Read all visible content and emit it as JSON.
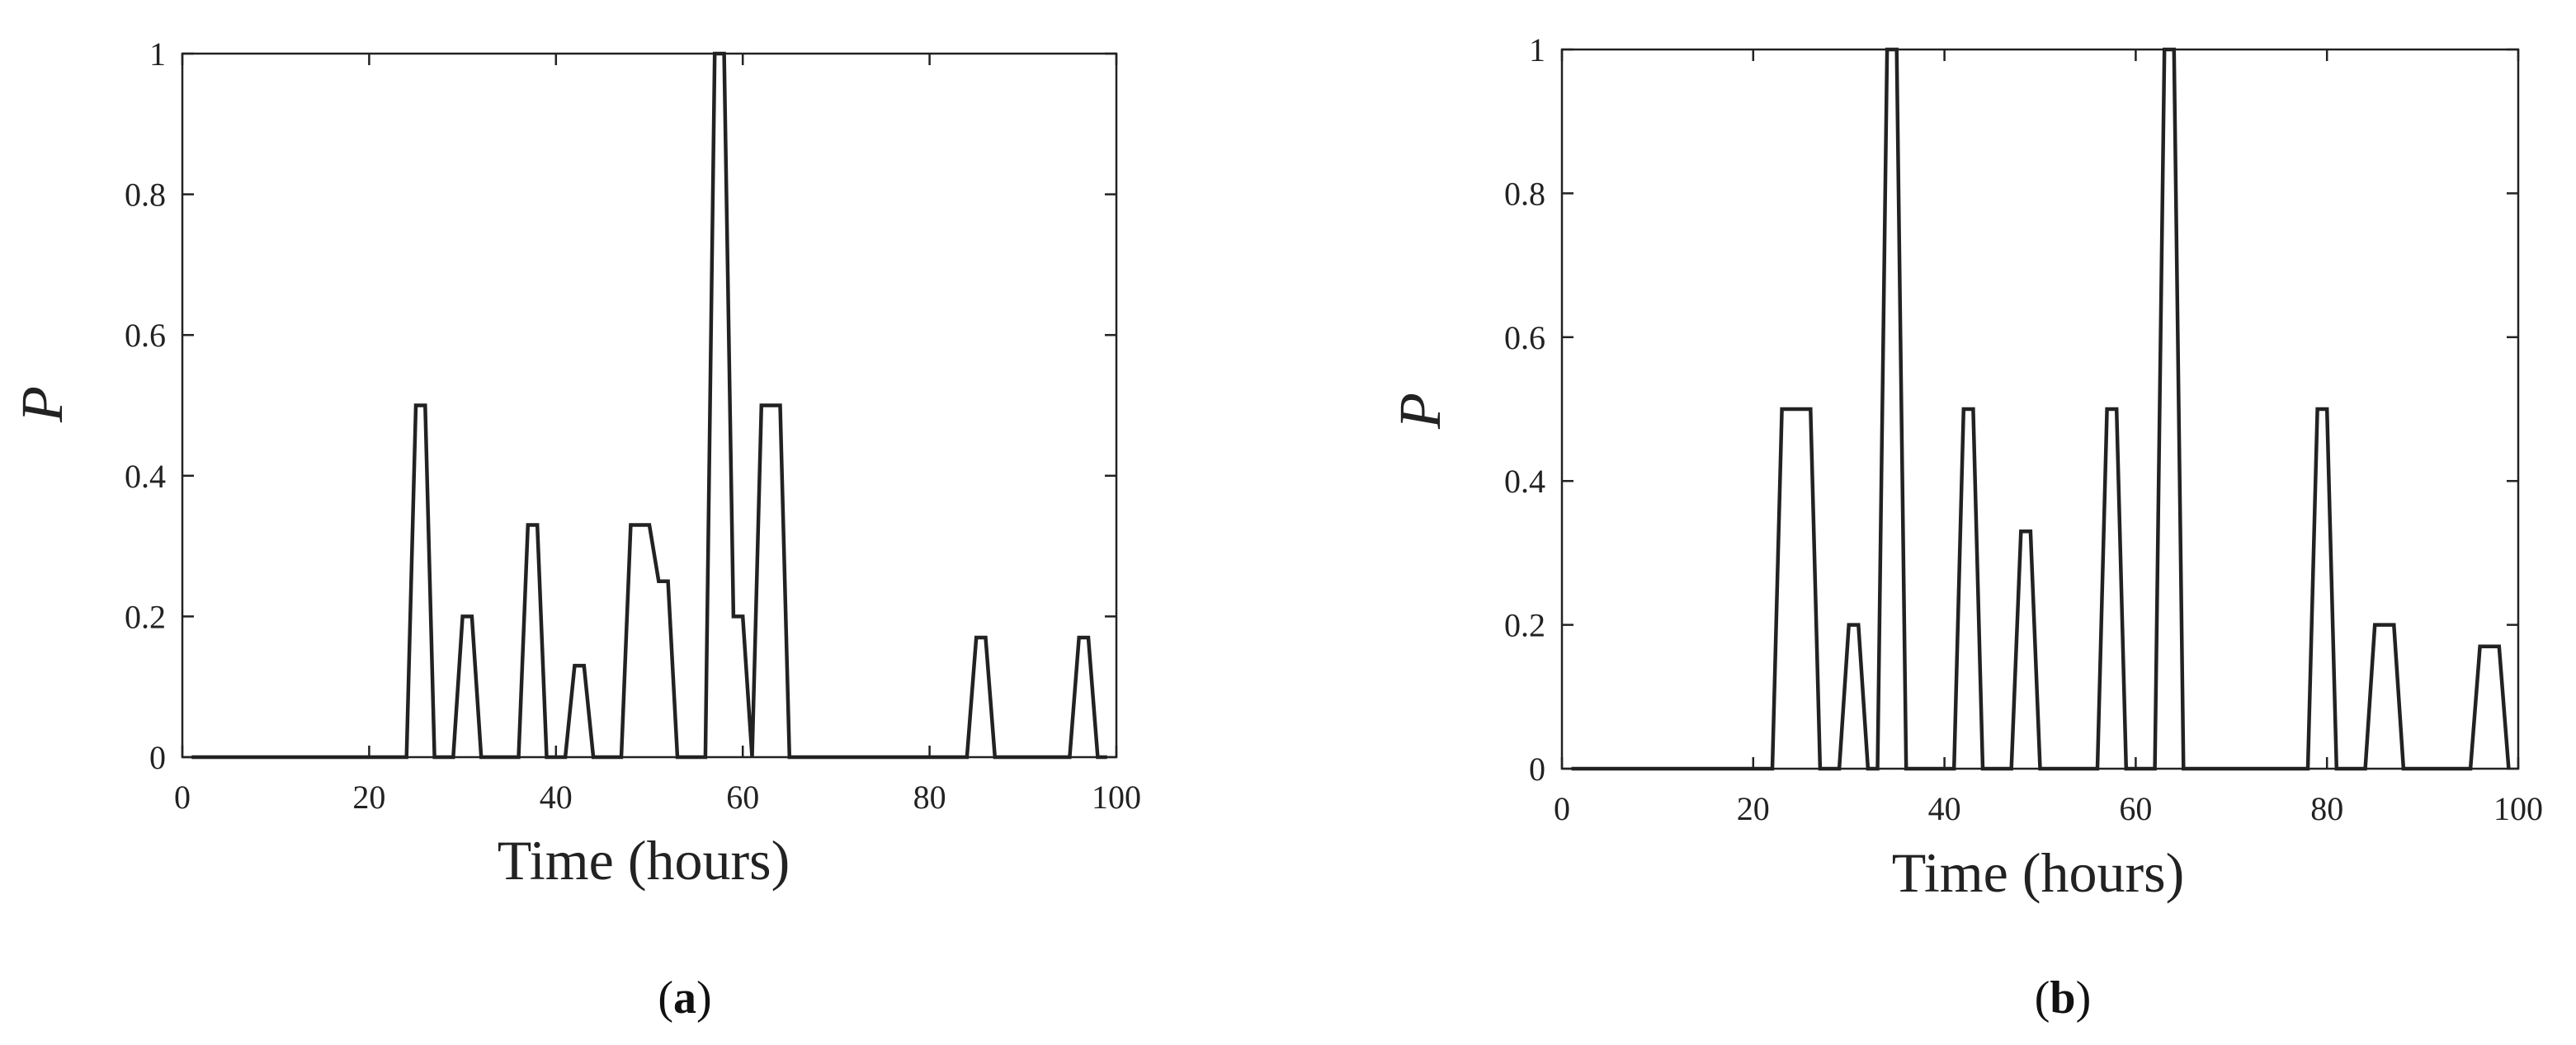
{
  "panels": [
    {
      "label_letter": "a",
      "label_open": "(",
      "label_close": ")"
    },
    {
      "label_letter": "b",
      "label_open": "(",
      "label_close": ")"
    }
  ],
  "chart_data": [
    {
      "type": "line",
      "title": "",
      "xlabel": "Time (hours)",
      "ylabel": "P",
      "xlim": [
        0,
        100
      ],
      "ylim": [
        0,
        1
      ],
      "xticks": [
        0,
        20,
        40,
        60,
        80,
        100
      ],
      "yticks": [
        0,
        0.2,
        0.4,
        0.6,
        0.8,
        1
      ],
      "ytick_labels": [
        "0",
        "0.2",
        "0.4",
        "0.6",
        "0.8",
        "1"
      ],
      "grid": false,
      "series": [
        {
          "color": "#222222",
          "x": [
            1,
            24,
            25,
            26,
            27,
            29,
            30,
            31,
            32,
            36,
            37,
            38,
            39,
            41,
            42,
            43,
            44,
            47,
            48,
            50,
            51,
            52,
            53,
            56,
            57,
            58,
            59,
            60,
            61,
            62,
            63,
            64,
            65,
            84,
            85,
            86,
            87,
            95,
            96,
            97,
            98,
            99
          ],
          "y": [
            0,
            0,
            0.5,
            0.5,
            0,
            0,
            0.2,
            0.2,
            0,
            0,
            0.33,
            0.33,
            0,
            0,
            0.13,
            0.13,
            0,
            0,
            0.33,
            0.33,
            0.25,
            0.25,
            0,
            0,
            1,
            1,
            0.2,
            0.2,
            0,
            0.5,
            0.5,
            0.5,
            0,
            0,
            0.17,
            0.17,
            0,
            0,
            0.17,
            0.17,
            0,
            0
          ]
        }
      ]
    },
    {
      "type": "line",
      "title": "",
      "xlabel": "Time (hours)",
      "ylabel": "P",
      "xlim": [
        0,
        100
      ],
      "ylim": [
        0,
        1
      ],
      "xticks": [
        0,
        20,
        40,
        60,
        80,
        100
      ],
      "yticks": [
        0,
        0.2,
        0.4,
        0.6,
        0.8,
        1
      ],
      "ytick_labels": [
        "0",
        "0.2",
        "0.4",
        "0.6",
        "0.8",
        "1"
      ],
      "grid": false,
      "series": [
        {
          "color": "#222222",
          "x": [
            1,
            22,
            23,
            24,
            26,
            27,
            29,
            30,
            31,
            32,
            33,
            34,
            35,
            36,
            41,
            42,
            43,
            44,
            47,
            48,
            49,
            50,
            56,
            57,
            58,
            59,
            62,
            63,
            64,
            65,
            78,
            79,
            80,
            81,
            84,
            85,
            87,
            88,
            95,
            96,
            98,
            99
          ],
          "y": [
            0,
            0,
            0.5,
            0.5,
            0.5,
            0,
            0,
            0.2,
            0.2,
            0,
            0,
            1,
            1,
            0,
            0,
            0.5,
            0.5,
            0,
            0,
            0.33,
            0.33,
            0,
            0,
            0.5,
            0.5,
            0,
            0,
            1,
            1,
            0,
            0,
            0.5,
            0.5,
            0,
            0,
            0.2,
            0.2,
            0,
            0,
            0.17,
            0.17,
            0
          ]
        }
      ]
    }
  ]
}
